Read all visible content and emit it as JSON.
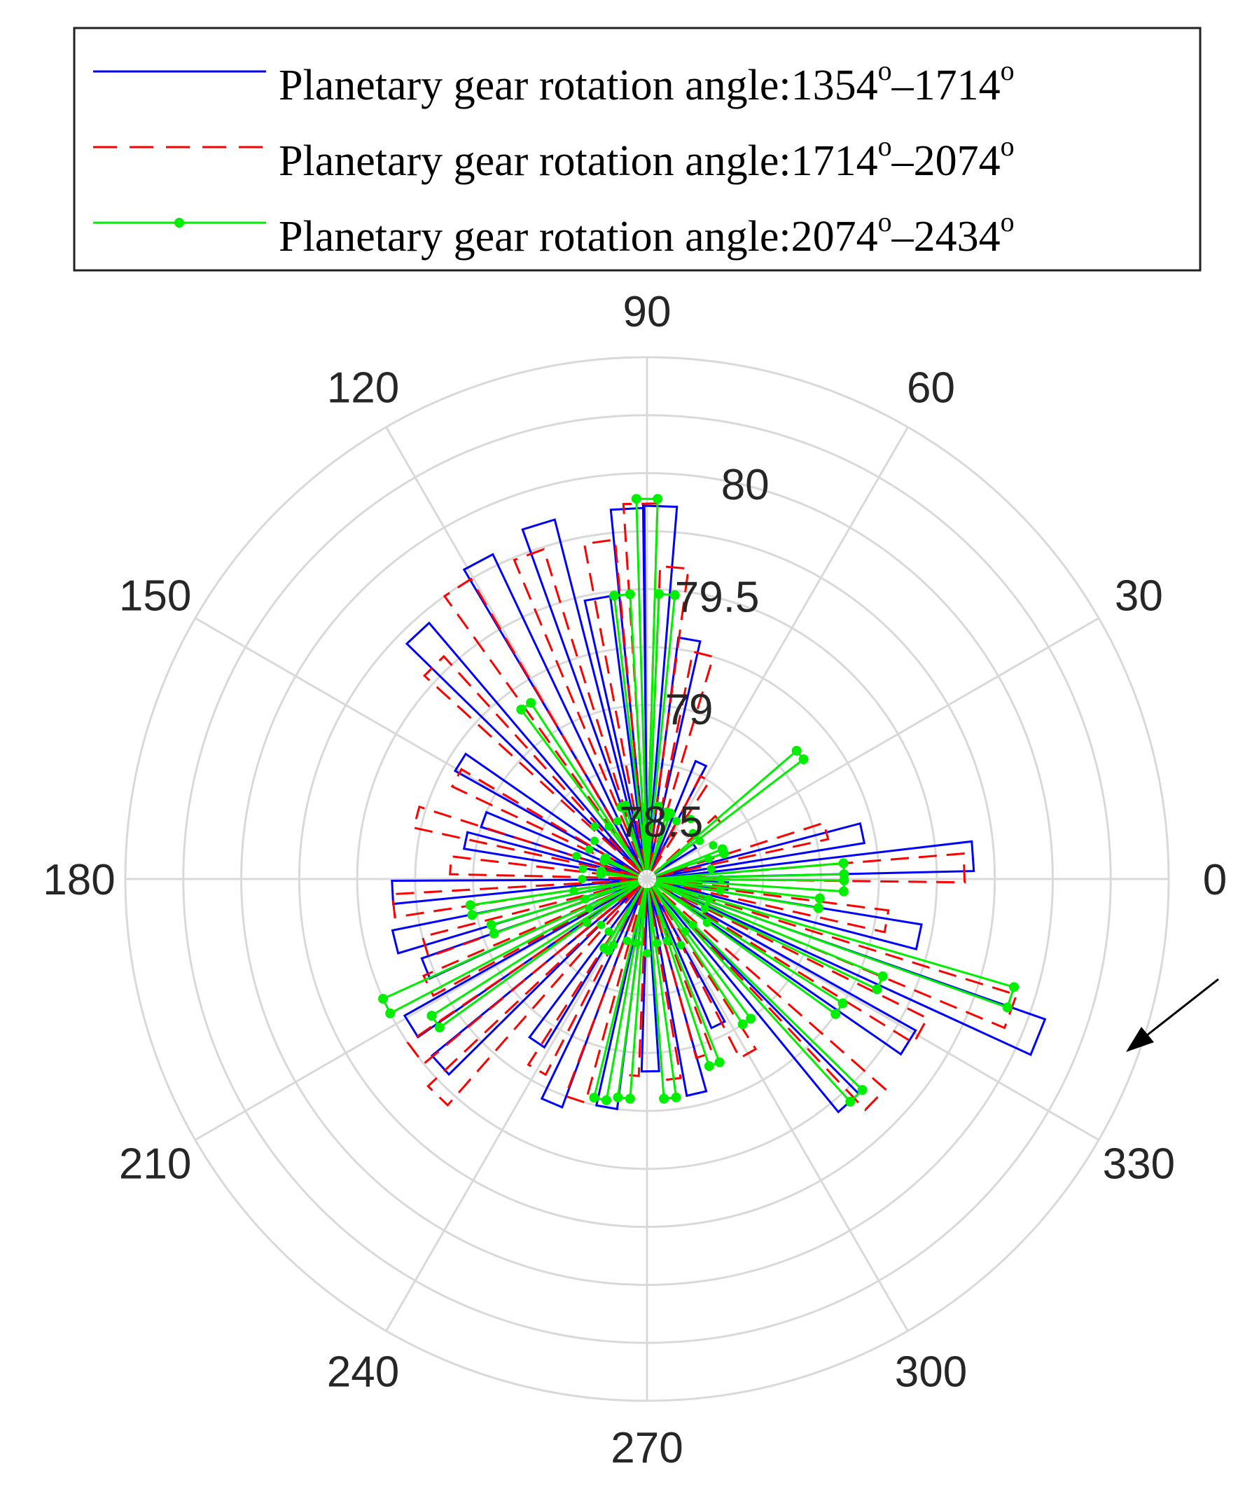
{
  "chart_data": {
    "type": "polar-line",
    "title": "",
    "theta_unit": "degrees",
    "theta_ticks": [
      "0",
      "30",
      "60",
      "90",
      "120",
      "150",
      "180",
      "210",
      "240",
      "270",
      "300",
      "330"
    ],
    "r_ticks": [
      "78.5",
      "79",
      "79.5",
      "80"
    ],
    "r_tick_values": [
      78.5,
      79,
      79.5,
      80
    ],
    "r_range": [
      78.25,
      80.5
    ],
    "legend": {
      "placement": "top",
      "entries": [
        {
          "prefix": "Planetary gear rotation angle:1354",
          "sup1": "o",
          "mid": "–1714",
          "sup2": "o"
        },
        {
          "prefix": "Planetary gear rotation angle:1714",
          "sup1": "o",
          "mid": "–2074",
          "sup2": "o"
        },
        {
          "prefix": "Planetary gear rotation angle:2074",
          "sup1": "o",
          "mid": "–2434",
          "sup2": "o"
        }
      ]
    },
    "annotation": {
      "type": "arrow",
      "points_to_theta": 339,
      "points_to_r": 80.15
    },
    "series": [
      {
        "name": "Planetary gear rotation angle:1354°–1714°",
        "color": "#0000ff",
        "style": "solid",
        "marker": "none",
        "peaks": [
          {
            "theta": 4,
            "r": 79.66
          },
          {
            "theta": 12,
            "r": 79.2
          },
          {
            "theta": 35,
            "r": 78.5
          },
          {
            "theta": 65,
            "r": 78.8
          },
          {
            "theta": 80,
            "r": 79.3
          },
          {
            "theta": 88,
            "r": 79.86
          },
          {
            "theta": 93,
            "r": 79.85
          },
          {
            "theta": 100,
            "r": 79.48
          },
          {
            "theta": 107,
            "r": 79.85
          },
          {
            "theta": 118,
            "r": 79.8
          },
          {
            "theta": 133,
            "r": 79.7
          },
          {
            "theta": 148,
            "r": 79.2
          },
          {
            "theta": 160,
            "r": 79.0
          },
          {
            "theta": 168,
            "r": 79.05
          },
          {
            "theta": 183,
            "r": 79.35
          },
          {
            "theta": 194,
            "r": 79.37
          },
          {
            "theta": 202,
            "r": 79.28
          },
          {
            "theta": 212,
            "r": 79.45
          },
          {
            "theta": 222,
            "r": 79.45
          },
          {
            "theta": 236,
            "r": 79.1
          },
          {
            "theta": 247,
            "r": 79.3
          },
          {
            "theta": 260,
            "r": 79.25
          },
          {
            "theta": 271,
            "r": 79.08
          },
          {
            "theta": 283,
            "r": 79.2
          },
          {
            "theta": 296,
            "r": 78.95
          },
          {
            "theta": 312,
            "r": 79.55
          },
          {
            "theta": 328,
            "r": 79.58
          },
          {
            "theta": 338,
            "r": 80.07
          },
          {
            "theta": 348,
            "r": 79.45
          },
          {
            "theta": 355,
            "r": 78.6
          }
        ]
      },
      {
        "name": "Planetary gear rotation angle:1714°–2074°",
        "color": "#ff0000",
        "style": "dashed",
        "marker": "none",
        "peaks": [
          {
            "theta": 2,
            "r": 79.62
          },
          {
            "theta": 15,
            "r": 79.05
          },
          {
            "theta": 40,
            "r": 78.65
          },
          {
            "theta": 60,
            "r": 78.75
          },
          {
            "theta": 76,
            "r": 79.25
          },
          {
            "theta": 85,
            "r": 79.6
          },
          {
            "theta": 91,
            "r": 79.87
          },
          {
            "theta": 98,
            "r": 79.72
          },
          {
            "theta": 110,
            "r": 79.74
          },
          {
            "theta": 123,
            "r": 79.75
          },
          {
            "theta": 135,
            "r": 79.55
          },
          {
            "theta": 152,
            "r": 79.18
          },
          {
            "theta": 165,
            "r": 79.28
          },
          {
            "theta": 176,
            "r": 79.1
          },
          {
            "theta": 186,
            "r": 79.35
          },
          {
            "theta": 197,
            "r": 79.25
          },
          {
            "theta": 206,
            "r": 79.3
          },
          {
            "theta": 217,
            "r": 79.5
          },
          {
            "theta": 226,
            "r": 79.55
          },
          {
            "theta": 240,
            "r": 79.2
          },
          {
            "theta": 252,
            "r": 79.25
          },
          {
            "theta": 265,
            "r": 79.1
          },
          {
            "theta": 277,
            "r": 79.12
          },
          {
            "theta": 288,
            "r": 79.05
          },
          {
            "theta": 300,
            "r": 79.12
          },
          {
            "theta": 316,
            "r": 79.62
          },
          {
            "theta": 331,
            "r": 79.6
          },
          {
            "theta": 340,
            "r": 79.92
          },
          {
            "theta": 350,
            "r": 79.3
          },
          {
            "theta": 357,
            "r": 78.6
          }
        ]
      },
      {
        "name": "Planetary gear rotation angle:2074°–2434°",
        "color": "#00ee00",
        "style": "solid",
        "marker": "dot",
        "peaks": [
          {
            "theta": 3,
            "r": 79.1
          },
          {
            "theta": 20,
            "r": 78.6
          },
          {
            "theta": 39,
            "r": 79.1
          },
          {
            "theta": 72,
            "r": 78.55
          },
          {
            "theta": 86,
            "r": 79.48
          },
          {
            "theta": 90,
            "r": 79.89
          },
          {
            "theta": 95,
            "r": 79.48
          },
          {
            "theta": 108,
            "r": 78.58
          },
          {
            "theta": 125,
            "r": 79.16
          },
          {
            "theta": 155,
            "r": 78.45
          },
          {
            "theta": 172,
            "r": 78.45
          },
          {
            "theta": 190,
            "r": 79.02
          },
          {
            "theta": 198,
            "r": 78.95
          },
          {
            "theta": 206,
            "r": 79.5
          },
          {
            "theta": 214,
            "r": 79.35
          },
          {
            "theta": 240,
            "r": 78.6
          },
          {
            "theta": 258,
            "r": 79.22
          },
          {
            "theta": 264,
            "r": 79.2
          },
          {
            "theta": 276,
            "r": 79.2
          },
          {
            "theta": 290,
            "r": 79.1
          },
          {
            "theta": 305,
            "r": 79.0
          },
          {
            "theta": 314,
            "r": 79.55
          },
          {
            "theta": 326,
            "r": 79.25
          },
          {
            "theta": 336,
            "r": 79.35
          },
          {
            "theta": 342,
            "r": 79.9
          },
          {
            "theta": 352,
            "r": 79.0
          },
          {
            "theta": 358,
            "r": 79.1
          }
        ]
      }
    ]
  }
}
